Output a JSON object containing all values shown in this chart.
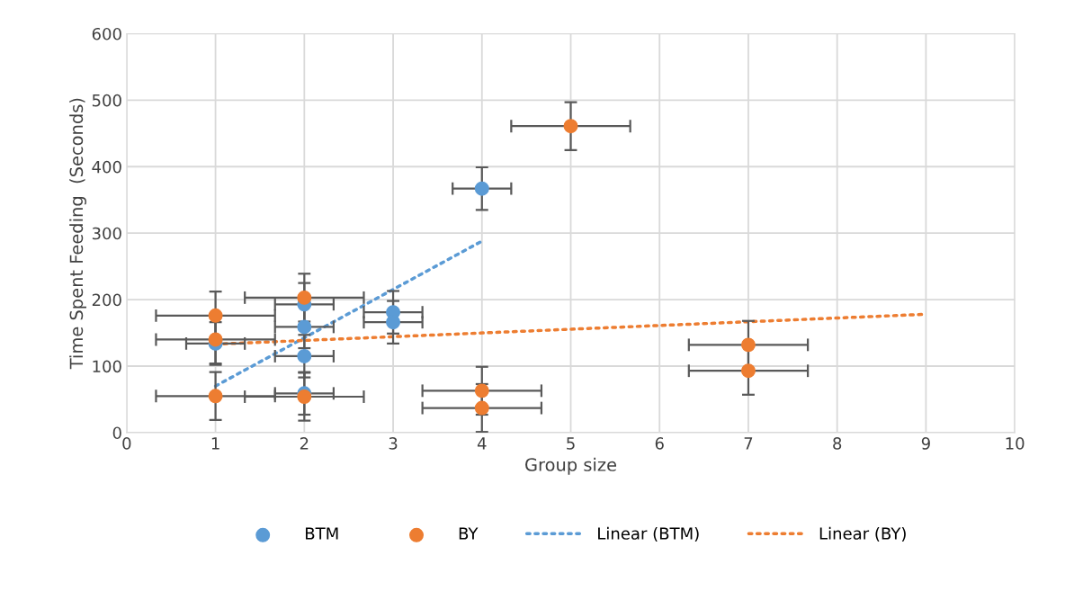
{
  "chart_data": {
    "type": "scatter",
    "xlabel": "Group size",
    "ylabel": "Time Spent Feeding  (Seconds)",
    "xlim": [
      0,
      10
    ],
    "xticks": [
      0,
      1,
      2,
      3,
      4,
      5,
      6,
      7,
      8,
      9,
      10
    ],
    "ylim": [
      0,
      600
    ],
    "yticks": [
      0,
      100,
      200,
      300,
      400,
      500,
      600
    ],
    "grid": true,
    "legend": "bottom",
    "series": [
      {
        "name": "BTM",
        "marker": "circle",
        "color": "#5b9bd5",
        "x": [
          1,
          2,
          2,
          2,
          2,
          3,
          3,
          4
        ],
        "values": [
          134,
          193,
          159,
          115,
          59,
          181,
          166,
          367
        ],
        "errors": [
          32,
          32,
          32,
          32,
          32,
          32,
          32,
          32
        ],
        "xerrors": [
          0.33,
          0.33,
          0.33,
          0.33,
          0.33,
          0.33,
          0.33,
          0.33
        ]
      },
      {
        "name": "BY",
        "marker": "circle",
        "color": "#ed7d31",
        "x": [
          1,
          1,
          1,
          2,
          2,
          4,
          4,
          5,
          7,
          7
        ],
        "values": [
          176,
          140,
          55,
          203,
          54,
          63,
          37,
          461,
          132,
          93
        ],
        "errors": [
          36,
          36,
          36,
          36,
          36,
          36,
          36,
          36,
          36,
          36
        ],
        "xerrors": [
          0.67,
          0.67,
          0.67,
          0.67,
          0.67,
          0.67,
          0.67,
          0.67,
          0.67,
          0.67
        ]
      },
      {
        "name": "Linear (BTM)",
        "type": "line",
        "marker": "none",
        "line_style": "dotted",
        "color": "#5b9bd5",
        "x": [
          1,
          4
        ],
        "values": [
          70,
          288
        ]
      },
      {
        "name": "Linear (BY)",
        "type": "line",
        "marker": "none",
        "line_style": "dotted",
        "color": "#ed7d31",
        "x": [
          1,
          9
        ],
        "values": [
          133,
          178
        ]
      }
    ]
  }
}
